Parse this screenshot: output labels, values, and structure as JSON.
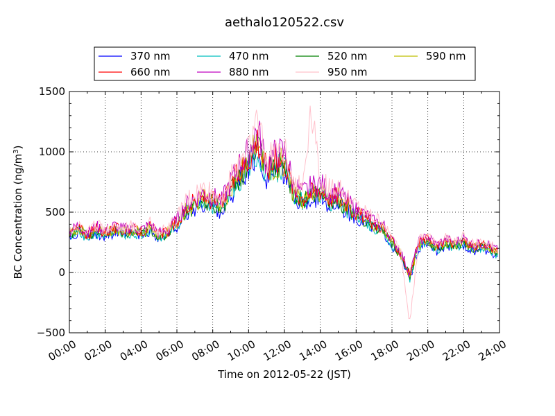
{
  "chart_data": {
    "type": "line",
    "title": "aethalo120522.csv",
    "xlabel": "Time on 2012-05-22 (JST)",
    "ylabel_main": "BC Concentration (ng/m",
    "ylabel_sup": "3",
    "ylabel_close": ")",
    "xlim": [
      0,
      24
    ],
    "ylim": [
      -500,
      1500
    ],
    "x_tick_values": [
      0,
      2,
      4,
      6,
      8,
      10,
      12,
      14,
      16,
      18,
      20,
      22,
      24
    ],
    "x_tick_labels": [
      "00:00",
      "02:00",
      "04:00",
      "06:00",
      "08:00",
      "10:00",
      "12:00",
      "14:00",
      "16:00",
      "18:00",
      "20:00",
      "22:00",
      "24:00"
    ],
    "y_tick_values": [
      -500,
      0,
      500,
      1000,
      1500
    ],
    "y_tick_labels": [
      "−500",
      "0",
      "500",
      "1000",
      "1500"
    ],
    "grid": true,
    "legend_position": "top-center",
    "x_sample_hours": [
      0,
      0.5,
      1,
      1.5,
      2,
      2.5,
      3,
      3.5,
      4,
      4.5,
      5,
      5.5,
      6,
      6.5,
      7,
      7.5,
      8,
      8.5,
      9,
      9.5,
      10,
      10.5,
      11,
      11.5,
      12,
      12.5,
      13,
      13.5,
      14,
      14.5,
      15,
      15.5,
      16,
      16.5,
      17,
      17.5,
      18,
      18.5,
      19,
      19.5,
      20,
      20.5,
      21,
      21.5,
      22,
      22.5,
      23,
      23.5,
      23.9
    ],
    "series": [
      {
        "name": "370 nm",
        "color": "#0000ff",
        "values": [
          290,
          330,
          280,
          320,
          300,
          330,
          310,
          320,
          300,
          340,
          280,
          300,
          380,
          470,
          520,
          560,
          540,
          500,
          640,
          760,
          860,
          1000,
          780,
          840,
          860,
          620,
          560,
          600,
          620,
          560,
          580,
          500,
          460,
          420,
          360,
          340,
          220,
          120,
          -60,
          200,
          240,
          180,
          220,
          200,
          230,
          180,
          190,
          180,
          130
        ]
      },
      {
        "name": "470 nm",
        "color": "#00bfbf",
        "values": [
          300,
          340,
          290,
          330,
          310,
          340,
          320,
          330,
          310,
          350,
          290,
          310,
          390,
          490,
          540,
          580,
          560,
          520,
          660,
          780,
          880,
          1030,
          800,
          860,
          880,
          640,
          580,
          620,
          640,
          580,
          600,
          520,
          470,
          430,
          370,
          350,
          230,
          130,
          -50,
          210,
          250,
          190,
          230,
          210,
          240,
          190,
          200,
          190,
          140
        ]
      },
      {
        "name": "520 nm",
        "color": "#008000",
        "values": [
          310,
          350,
          300,
          340,
          320,
          350,
          330,
          340,
          320,
          360,
          300,
          320,
          400,
          500,
          560,
          600,
          570,
          530,
          680,
          800,
          900,
          1060,
          820,
          880,
          900,
          660,
          600,
          640,
          660,
          600,
          610,
          530,
          480,
          440,
          380,
          360,
          240,
          140,
          -40,
          220,
          260,
          200,
          240,
          220,
          250,
          200,
          210,
          200,
          150
        ]
      },
      {
        "name": "590 nm",
        "color": "#bfbf00",
        "values": [
          320,
          360,
          310,
          350,
          330,
          360,
          340,
          350,
          330,
          370,
          310,
          330,
          410,
          510,
          570,
          610,
          580,
          540,
          690,
          820,
          920,
          1090,
          840,
          900,
          920,
          680,
          610,
          650,
          680,
          610,
          620,
          540,
          490,
          450,
          390,
          370,
          250,
          150,
          -30,
          230,
          270,
          210,
          250,
          230,
          260,
          210,
          220,
          210,
          160
        ]
      },
      {
        "name": "660 nm",
        "color": "#ff0000",
        "values": [
          330,
          370,
          320,
          360,
          340,
          370,
          350,
          360,
          340,
          380,
          320,
          340,
          420,
          530,
          590,
          630,
          600,
          560,
          710,
          840,
          950,
          1120,
          860,
          930,
          950,
          700,
          630,
          670,
          700,
          630,
          640,
          560,
          500,
          460,
          400,
          380,
          260,
          160,
          -20,
          240,
          280,
          220,
          260,
          240,
          270,
          220,
          230,
          220,
          170
        ]
      },
      {
        "name": "880 nm",
        "color": "#bf00bf",
        "values": [
          340,
          390,
          330,
          380,
          350,
          390,
          360,
          380,
          350,
          400,
          330,
          350,
          440,
          560,
          620,
          660,
          630,
          590,
          750,
          890,
          1000,
          1190,
          910,
          980,
          1000,
          740,
          660,
          710,
          740,
          660,
          670,
          590,
          520,
          480,
          420,
          400,
          270,
          170,
          -10,
          260,
          300,
          230,
          280,
          250,
          290,
          230,
          240,
          230,
          180
        ]
      },
      {
        "name": "950 nm",
        "color": "#ffc0cb",
        "values": [
          350,
          400,
          340,
          390,
          360,
          400,
          370,
          390,
          360,
          410,
          340,
          360,
          450,
          580,
          640,
          680,
          650,
          610,
          780,
          920,
          1040,
          1240,
          950,
          1020,
          1040,
          770,
          690,
          1380,
          770,
          690,
          700,
          610,
          540,
          500,
          440,
          420,
          280,
          180,
          -420,
          270,
          310,
          240,
          290,
          260,
          300,
          240,
          250,
          240,
          190
        ]
      }
    ]
  }
}
